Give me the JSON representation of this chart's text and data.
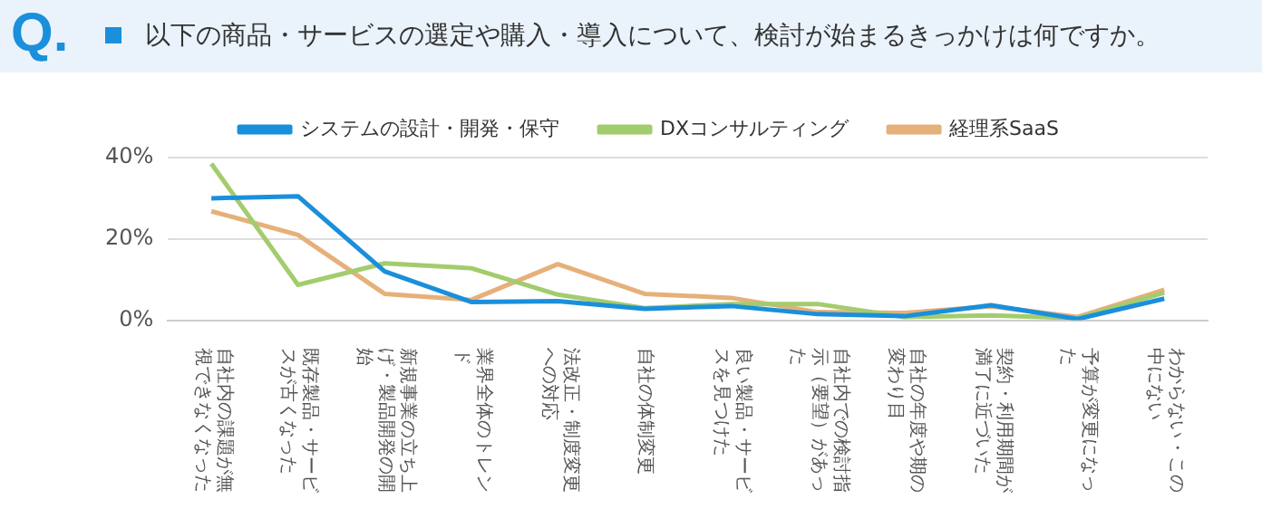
{
  "chart_data": {
    "type": "line",
    "title": "以下の商品・サービスの選定や購入・導入について、検討が始まるきっかけは何ですか。",
    "annotations": [
      "Q."
    ],
    "categories": [
      "自社内の課題が無視できなくなった",
      "既存製品・サービスが古くなった",
      "新規事業の立ち上げ・製品開発の開始",
      "業界全体のトレンド",
      "法改正・制度変更への対応",
      "自社の体制変更",
      "良い製品・サービスを見つけた",
      "自社内での検討指示（要望）があった",
      "自社の年度や期の変わり目",
      "契約・利用期間が満了に近づいた",
      "予算が変更になった",
      "わからない・この中にない"
    ],
    "series": [
      {
        "name": "システムの設計・開発・保守",
        "color": "#1a8fdb",
        "values": [
          30,
          30.5,
          12,
          4.5,
          4.7,
          2.8,
          3.5,
          1.5,
          1,
          3.7,
          0.3,
          5.3
        ]
      },
      {
        "name": "DXコンサルティング",
        "color": "#a3cc6e",
        "values": [
          38.5,
          8.7,
          14,
          12.8,
          6.3,
          3,
          4,
          4,
          0.8,
          1.2,
          0.5,
          6.8
        ]
      },
      {
        "name": "経理系SaaS",
        "color": "#e6b07a",
        "values": [
          26.8,
          21,
          6.5,
          5,
          13.8,
          6.5,
          5.5,
          2,
          1.8,
          3.4,
          0.8,
          7.5
        ]
      }
    ],
    "ylim": [
      0,
      40
    ],
    "yticks": [
      {
        "value": 0,
        "label": "0%"
      },
      {
        "value": 20,
        "label": "20%"
      },
      {
        "value": 40,
        "label": "40%"
      }
    ],
    "grid": "y",
    "legend": "top",
    "marker": "none",
    "line_style": "solid"
  }
}
